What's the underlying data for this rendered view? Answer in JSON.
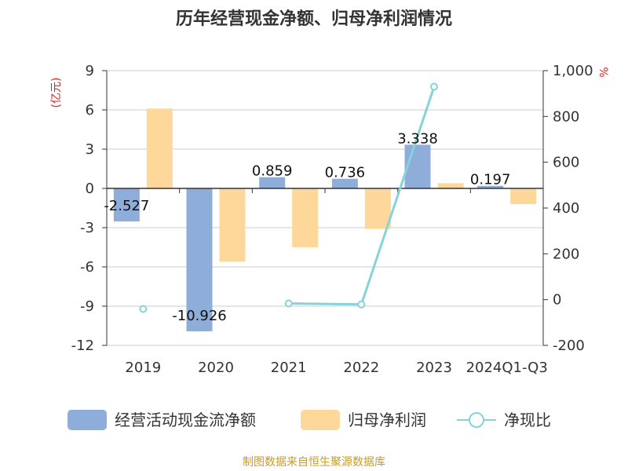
{
  "chart_data": {
    "type": "bar",
    "title": "历年经营现金净额、归母净利润情况",
    "categories": [
      "2019",
      "2020",
      "2021",
      "2022",
      "2023",
      "2024Q1-Q3"
    ],
    "series": [
      {
        "name": "经营活动现金流净额",
        "kind": "bar",
        "axis": "left",
        "color": "#8eadd9",
        "values": [
          -2.527,
          -10.926,
          0.859,
          0.736,
          3.338,
          0.197
        ],
        "labels": [
          "-2.527",
          "-10.926",
          "0.859",
          "0.736",
          "3.338",
          "0.197"
        ]
      },
      {
        "name": "归母净利润",
        "kind": "bar",
        "axis": "left",
        "color": "#fdd89a",
        "values": [
          6.1,
          -5.6,
          -4.5,
          -3.1,
          0.4,
          -1.2
        ]
      },
      {
        "name": "净现比",
        "kind": "line",
        "axis": "right",
        "color": "#86d3d9",
        "values": [
          -41,
          null,
          -17,
          -21,
          930,
          null
        ]
      }
    ],
    "left_axis": {
      "unit": "(亿元)",
      "ylim": [
        -12,
        9
      ],
      "ticks": [
        "9",
        "6",
        "3",
        "0",
        "-3",
        "-6",
        "-9",
        "-12"
      ]
    },
    "right_axis": {
      "unit": "%",
      "ylim": [
        -200,
        1000
      ],
      "ticks": [
        "1,000",
        "800",
        "600",
        "400",
        "200",
        "0",
        "-200"
      ]
    },
    "grid": true,
    "legend_position": "bottom"
  },
  "source_text": "制图数据来自恒生聚源数据库"
}
